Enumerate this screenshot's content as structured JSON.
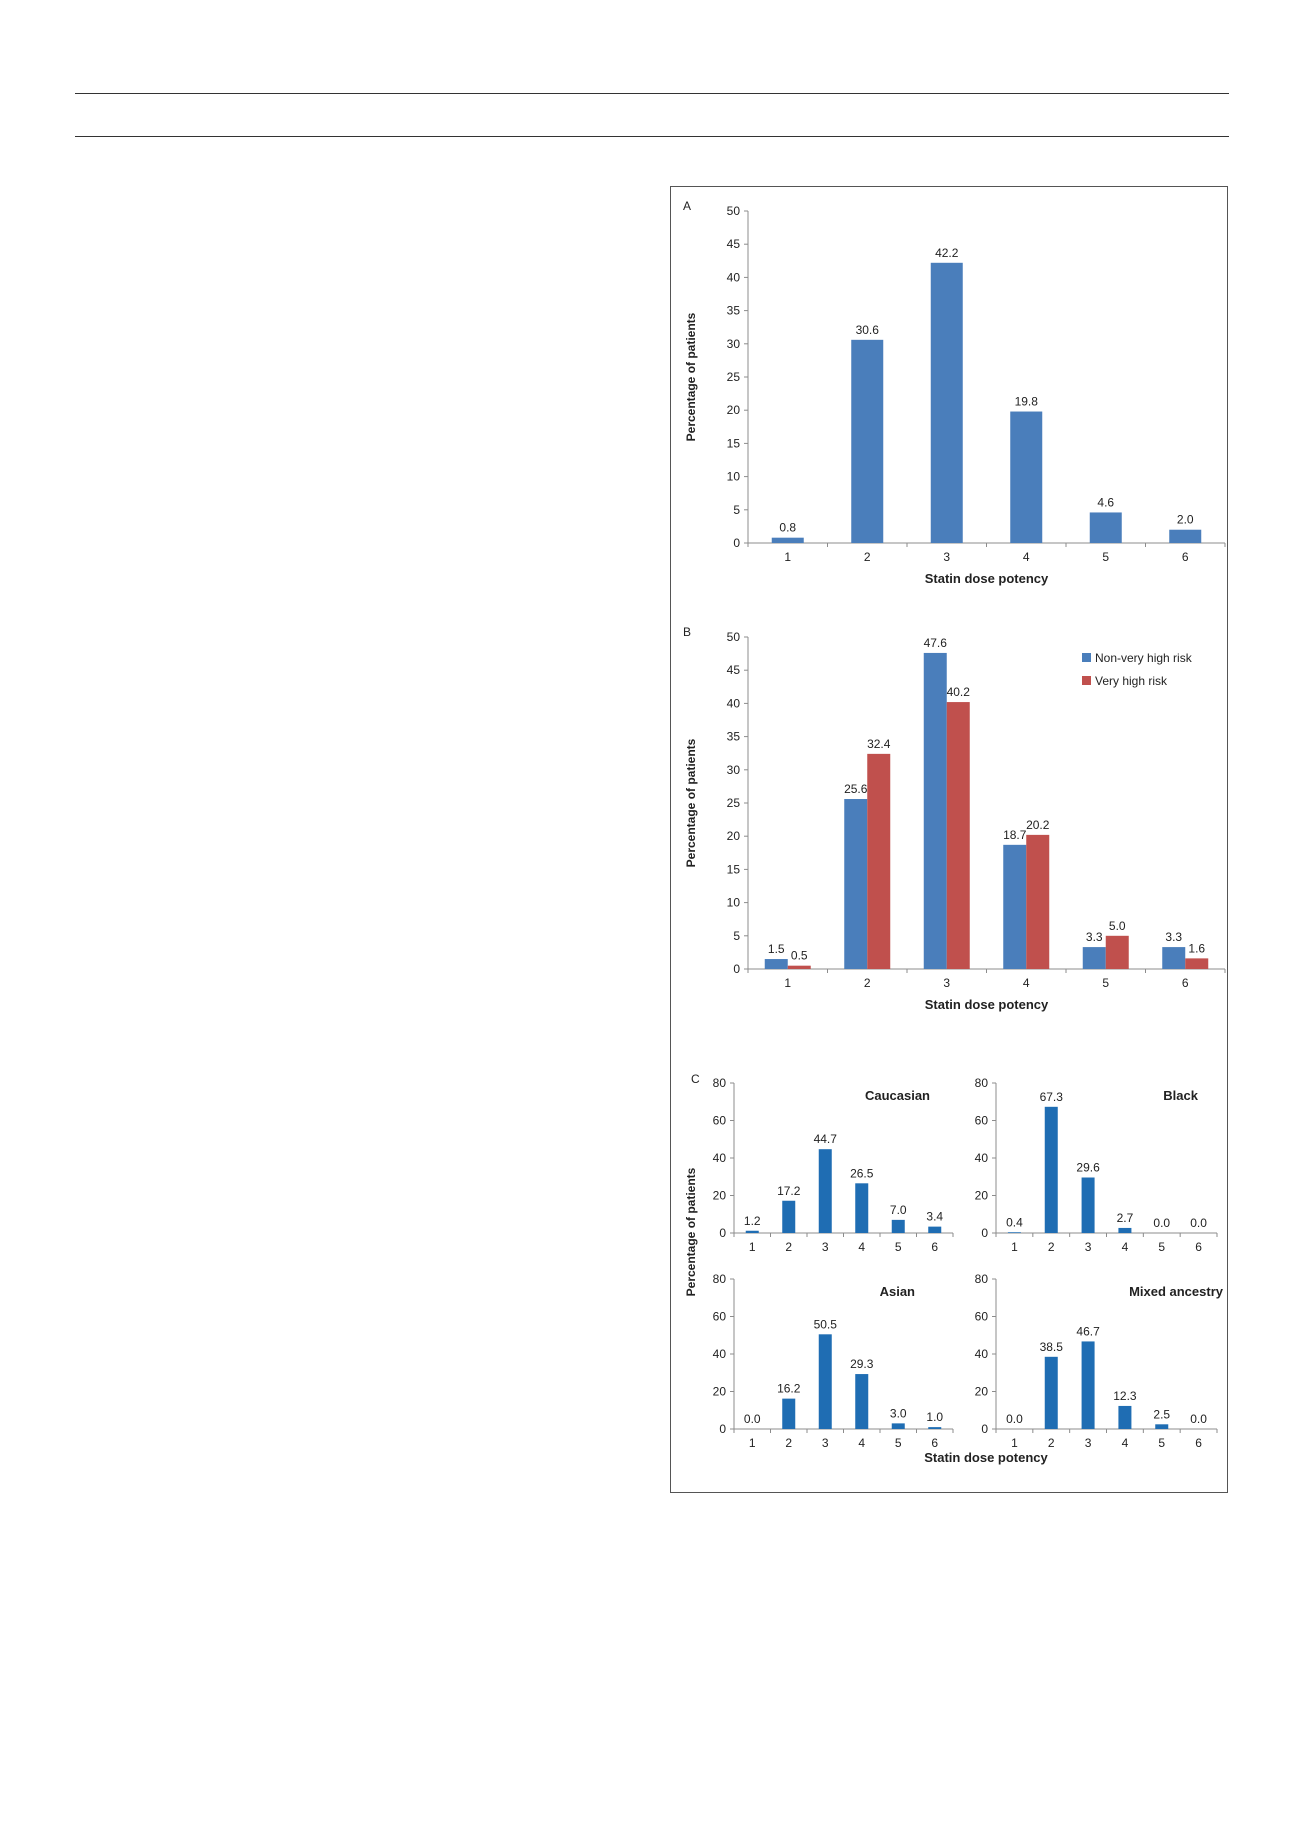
{
  "figure": {
    "panel_a_label": "A",
    "panel_b_label": "B",
    "panel_c_label": "C",
    "panel_c_ylabel": "Percentage of patients",
    "panel_c_xlabel": "Statin dose potency"
  },
  "colors": {
    "blue_a": "#4a7ebb",
    "blue_c": "#1f6db3",
    "red": "#c0504d",
    "axis": "#8c8c8c"
  },
  "chart_data": [
    {
      "panel": "A",
      "type": "bar",
      "categories": [
        "1",
        "2",
        "3",
        "4",
        "5",
        "6"
      ],
      "values": [
        0.8,
        30.6,
        42.2,
        19.8,
        4.6,
        2.0
      ],
      "value_labels": [
        "0.8",
        "30.6",
        "42.2",
        "19.8",
        "4.6",
        "2.0"
      ],
      "ylabel": "Percentage of patients",
      "xlabel": "Statin dose potency",
      "ylim": [
        0,
        50
      ],
      "yticks": [
        "0",
        "5",
        "10",
        "15",
        "20",
        "25",
        "30",
        "35",
        "40",
        "45",
        "50"
      ],
      "grid": false
    },
    {
      "panel": "B",
      "type": "bar",
      "categories": [
        "1",
        "2",
        "3",
        "4",
        "5",
        "6"
      ],
      "series": [
        {
          "name": "Non-very high risk",
          "values": [
            1.5,
            25.6,
            47.6,
            18.7,
            3.3,
            3.3
          ],
          "value_labels": [
            "1.5",
            "25.6",
            "47.6",
            "18.7",
            "3.3",
            "3.3"
          ]
        },
        {
          "name": "Very high risk",
          "values": [
            0.5,
            32.4,
            40.2,
            20.2,
            5.0,
            1.6
          ],
          "value_labels": [
            "0.5",
            "32.4",
            "40.2",
            "20.2",
            "5.0",
            "1.6"
          ]
        }
      ],
      "ylabel": "Percentage of patients",
      "xlabel": "Statin dose potency",
      "ylim": [
        0,
        50
      ],
      "yticks": [
        "0",
        "5",
        "10",
        "15",
        "20",
        "25",
        "30",
        "35",
        "40",
        "45",
        "50"
      ],
      "legend": "top-right",
      "grid": false
    },
    {
      "panel": "C-Caucasian",
      "type": "bar",
      "title": "Caucasian",
      "categories": [
        "1",
        "2",
        "3",
        "4",
        "5",
        "6"
      ],
      "values": [
        1.2,
        17.2,
        44.7,
        26.5,
        7.0,
        3.4
      ],
      "value_labels": [
        "1.2",
        "17.2",
        "44.7",
        "26.5",
        "7.0",
        "3.4"
      ],
      "ylim": [
        0,
        80
      ],
      "yticks": [
        "0",
        "20",
        "40",
        "60",
        "80"
      ]
    },
    {
      "panel": "C-Black",
      "type": "bar",
      "title": "Black",
      "categories": [
        "1",
        "2",
        "3",
        "4",
        "5",
        "6"
      ],
      "values": [
        0.4,
        67.3,
        29.6,
        2.7,
        0.0,
        0.0
      ],
      "value_labels": [
        "0.4",
        "67.3",
        "29.6",
        "2.7",
        "0.0",
        "0.0"
      ],
      "ylim": [
        0,
        80
      ],
      "yticks": [
        "0",
        "20",
        "40",
        "60",
        "80"
      ]
    },
    {
      "panel": "C-Asian",
      "type": "bar",
      "title": "Asian",
      "categories": [
        "1",
        "2",
        "3",
        "4",
        "5",
        "6"
      ],
      "values": [
        0.0,
        16.2,
        50.5,
        29.3,
        3.0,
        1.0
      ],
      "value_labels": [
        "0.0",
        "16.2",
        "50.5",
        "29.3",
        "3.0",
        "1.0"
      ],
      "ylim": [
        0,
        80
      ],
      "yticks": [
        "0",
        "20",
        "40",
        "60",
        "80"
      ]
    },
    {
      "panel": "C-Mixed",
      "type": "bar",
      "title": "Mixed ancestry",
      "categories": [
        "1",
        "2",
        "3",
        "4",
        "5",
        "6"
      ],
      "values": [
        0.0,
        38.5,
        46.7,
        12.3,
        2.5,
        0.0
      ],
      "value_labels": [
        "0.0",
        "38.5",
        "46.7",
        "12.3",
        "2.5",
        "0.0"
      ],
      "ylim": [
        0,
        80
      ],
      "yticks": [
        "0",
        "20",
        "40",
        "60",
        "80"
      ]
    }
  ]
}
